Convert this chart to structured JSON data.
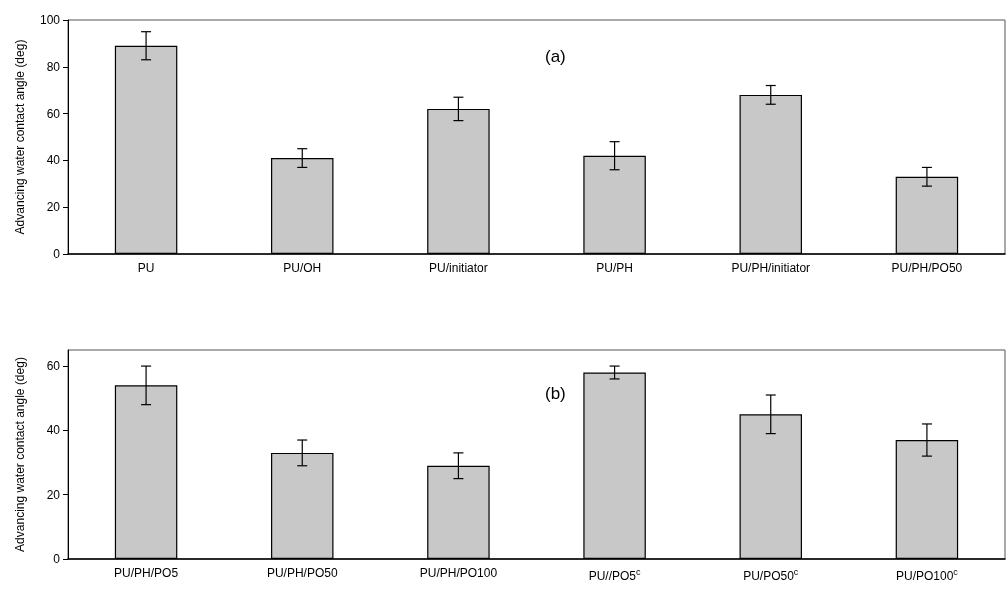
{
  "chart_data": [
    {
      "type": "bar",
      "categories": [
        "PU",
        "PU/OH",
        "PU/initiator",
        "PU/PH",
        "PU/PH/initiator",
        "PU/PH/PO50"
      ],
      "values": [
        89,
        41,
        62,
        42,
        68,
        33
      ],
      "errors": [
        6,
        4,
        5,
        6,
        4,
        4
      ],
      "color": "#c8c8c8",
      "ylabel": "Advancing water contact angle (deg)",
      "ylim": [
        0,
        100
      ],
      "yticks": [
        0,
        20,
        40,
        60,
        80,
        100
      ],
      "annotations": [
        "(a)"
      ],
      "grid": false
    },
    {
      "type": "bar",
      "categories": [
        "PU/PH/PO5",
        "PU/PH/PO50",
        "PU/PH/PO100",
        "PU//PO5$^{c}$",
        "PU/PO50$^{c}$",
        "PU/PO100$^{c}$"
      ],
      "values": [
        54,
        33,
        29,
        58,
        45,
        37
      ],
      "errors": [
        6,
        4,
        4,
        2,
        6,
        5
      ],
      "color": "#c8c8c8",
      "ylabel": "Advancing water contact angle (deg)",
      "ylim": [
        0,
        65
      ],
      "yticks": [
        0,
        20,
        40,
        60
      ],
      "annotations": [
        "(b)"
      ],
      "grid": false
    }
  ]
}
